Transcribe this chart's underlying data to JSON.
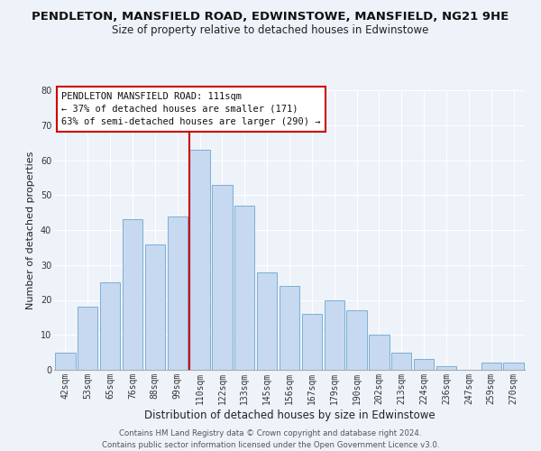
{
  "title": "PENDLETON, MANSFIELD ROAD, EDWINSTOWE, MANSFIELD, NG21 9HE",
  "subtitle": "Size of property relative to detached houses in Edwinstowe",
  "xlabel": "Distribution of detached houses by size in Edwinstowe",
  "ylabel": "Number of detached properties",
  "footer_line1": "Contains HM Land Registry data © Crown copyright and database right 2024.",
  "footer_line2": "Contains public sector information licensed under the Open Government Licence v3.0.",
  "bar_labels": [
    "42sqm",
    "53sqm",
    "65sqm",
    "76sqm",
    "88sqm",
    "99sqm",
    "110sqm",
    "122sqm",
    "133sqm",
    "145sqm",
    "156sqm",
    "167sqm",
    "179sqm",
    "190sqm",
    "202sqm",
    "213sqm",
    "224sqm",
    "236sqm",
    "247sqm",
    "259sqm",
    "270sqm"
  ],
  "bar_values": [
    5,
    18,
    25,
    43,
    36,
    44,
    63,
    53,
    47,
    28,
    24,
    16,
    20,
    17,
    10,
    5,
    3,
    1,
    0,
    2,
    2
  ],
  "bar_color": "#c6d9f0",
  "bar_edge_color": "#7bafd4",
  "highlight_index": 6,
  "highlight_line_color": "#cc0000",
  "annotation_title": "PENDLETON MANSFIELD ROAD: 111sqm",
  "annotation_line2": "← 37% of detached houses are smaller (171)",
  "annotation_line3": "63% of semi-detached houses are larger (290) →",
  "annotation_box_edge": "#cc0000",
  "ylim": [
    0,
    80
  ],
  "background_color": "#eef2f9",
  "grid_color": "#ffffff",
  "title_fontsize": 9.5,
  "subtitle_fontsize": 8.5,
  "xlabel_fontsize": 8.5,
  "ylabel_fontsize": 8,
  "tick_fontsize": 7,
  "annotation_fontsize": 7.5,
  "footer_fontsize": 6.2
}
